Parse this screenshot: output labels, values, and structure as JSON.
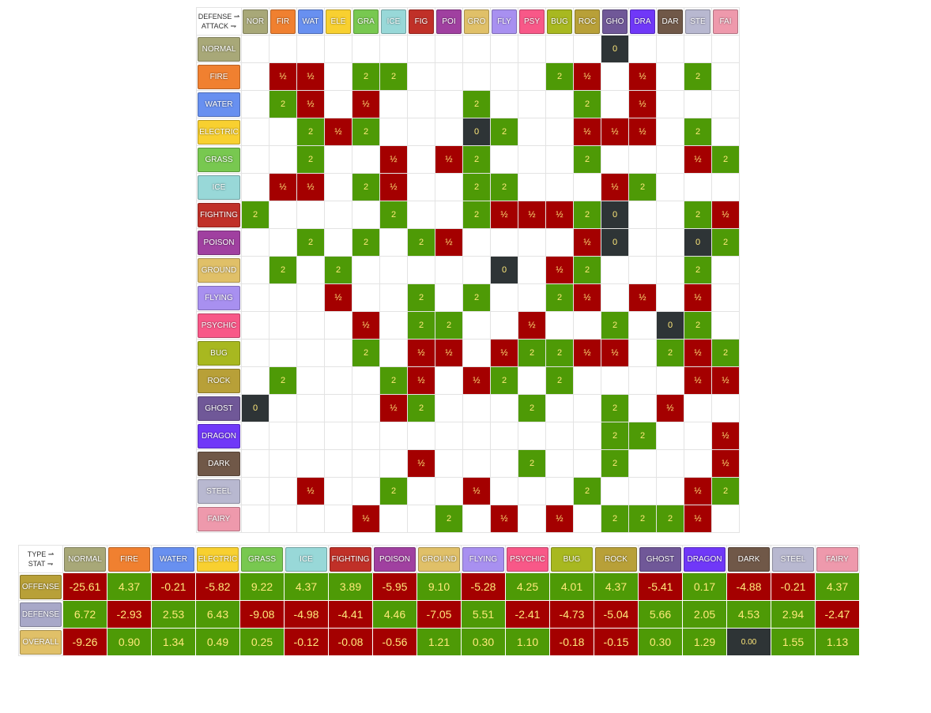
{
  "type_chart": {
    "corner_defense": "DEFENSE ⇀",
    "corner_attack": "ATTACK ⇁",
    "columns": [
      {
        "abbr": "NOR",
        "color": "#a8a878"
      },
      {
        "abbr": "FIR",
        "color": "#f08030"
      },
      {
        "abbr": "WAT",
        "color": "#6890f0"
      },
      {
        "abbr": "ELE",
        "color": "#f8d030"
      },
      {
        "abbr": "GRA",
        "color": "#78c850"
      },
      {
        "abbr": "ICE",
        "color": "#98d8d8"
      },
      {
        "abbr": "FIG",
        "color": "#c03028"
      },
      {
        "abbr": "POI",
        "color": "#a040a0"
      },
      {
        "abbr": "GRO",
        "color": "#e0c068"
      },
      {
        "abbr": "FLY",
        "color": "#a890f0"
      },
      {
        "abbr": "PSY",
        "color": "#f85888"
      },
      {
        "abbr": "BUG",
        "color": "#a8b820"
      },
      {
        "abbr": "ROC",
        "color": "#b8a038"
      },
      {
        "abbr": "GHO",
        "color": "#705898"
      },
      {
        "abbr": "DRA",
        "color": "#7038f8"
      },
      {
        "abbr": "DAR",
        "color": "#705848"
      },
      {
        "abbr": "STE",
        "color": "#b8b8d0"
      },
      {
        "abbr": "FAI",
        "color": "#ee99ac"
      }
    ],
    "rows": [
      {
        "name": "NORMAL",
        "color": "#a8a878",
        "cells": [
          "",
          "",
          "",
          "",
          "",
          "",
          "",
          "",
          "",
          "",
          "",
          "",
          "",
          "0",
          "",
          "",
          "",
          ""
        ]
      },
      {
        "name": "FIRE",
        "color": "#f08030",
        "cells": [
          "",
          "½",
          "½",
          "",
          "2",
          "2",
          "",
          "",
          "",
          "",
          "",
          "2",
          "½",
          "",
          "½",
          "",
          "2",
          ""
        ]
      },
      {
        "name": "WATER",
        "color": "#6890f0",
        "cells": [
          "",
          "2",
          "½",
          "",
          "½",
          "",
          "",
          "",
          "2",
          "",
          "",
          "",
          "2",
          "",
          "½",
          "",
          "",
          ""
        ]
      },
      {
        "name": "ELECTRIC",
        "color": "#f8d030",
        "cells": [
          "",
          "",
          "2",
          "½",
          "2",
          "",
          "",
          "",
          "0",
          "2",
          "",
          "",
          "½",
          "½",
          "½",
          "",
          "2",
          ""
        ]
      },
      {
        "name": "GRASS",
        "color": "#78c850",
        "cells": [
          "",
          "",
          "2",
          "",
          "",
          "½",
          "",
          "½",
          "2",
          "",
          "",
          "",
          "2",
          "",
          "",
          "",
          "½",
          "2"
        ]
      },
      {
        "name": "ICE",
        "color": "#98d8d8",
        "cells": [
          "",
          "½",
          "½",
          "",
          "2",
          "½",
          "",
          "",
          "2",
          "2",
          "",
          "",
          "",
          "½",
          "2",
          "",
          "",
          ""
        ]
      },
      {
        "name": "FIGHTING",
        "color": "#c03028",
        "cells": [
          "2",
          "",
          "",
          "",
          "",
          "2",
          "",
          "",
          "2",
          "½",
          "½",
          "½",
          "2",
          "0",
          "",
          "",
          "2",
          "½"
        ]
      },
      {
        "name": "POISON",
        "color": "#a040a0",
        "cells": [
          "",
          "",
          "2",
          "",
          "2",
          "",
          "2",
          "½",
          "",
          "",
          "",
          "",
          "½",
          "0",
          "",
          "",
          "0",
          "2"
        ]
      },
      {
        "name": "GROUND",
        "color": "#e0c068",
        "cells": [
          "",
          "2",
          "",
          "2",
          "",
          "",
          "",
          "",
          "",
          "0",
          "",
          "½",
          "2",
          "",
          "",
          "",
          "2",
          ""
        ]
      },
      {
        "name": "FLYING",
        "color": "#a890f0",
        "cells": [
          "",
          "",
          "",
          "½",
          "",
          "",
          "2",
          "",
          "2",
          "",
          "",
          "2",
          "½",
          "",
          "½",
          "",
          "½",
          ""
        ]
      },
      {
        "name": "PSYCHIC",
        "color": "#f85888",
        "cells": [
          "",
          "",
          "",
          "",
          "½",
          "",
          "2",
          "2",
          "",
          "",
          "½",
          "",
          "",
          "2",
          "",
          "0",
          "2",
          ""
        ]
      },
      {
        "name": "BUG",
        "color": "#a8b820",
        "cells": [
          "",
          "",
          "",
          "",
          "2",
          "",
          "½",
          "½",
          "",
          "½",
          "2",
          "2",
          "½",
          "½",
          "",
          "2",
          "½",
          "2"
        ]
      },
      {
        "name": "ROCK",
        "color": "#b8a038",
        "cells": [
          "",
          "2",
          "",
          "",
          "",
          "2",
          "½",
          "",
          "½",
          "2",
          "",
          "2",
          "",
          "",
          "",
          "",
          "½",
          "½"
        ]
      },
      {
        "name": "GHOST",
        "color": "#705898",
        "cells": [
          "0",
          "",
          "",
          "",
          "",
          "½",
          "2",
          "",
          "",
          "",
          "2",
          "",
          "",
          "2",
          "",
          "½",
          "",
          ""
        ]
      },
      {
        "name": "DRAGON",
        "color": "#7038f8",
        "cells": [
          "",
          "",
          "",
          "",
          "",
          "",
          "",
          "",
          "",
          "",
          "",
          "",
          "",
          "2",
          "2",
          "",
          "",
          "½"
        ]
      },
      {
        "name": "DARK",
        "color": "#705848",
        "cells": [
          "",
          "",
          "",
          "",
          "",
          "",
          "½",
          "",
          "",
          "",
          "2",
          "",
          "",
          "2",
          "",
          "",
          "",
          "½"
        ]
      },
      {
        "name": "STEEL",
        "color": "#b8b8d0",
        "cells": [
          "",
          "",
          "½",
          "",
          "",
          "2",
          "",
          "",
          "½",
          "",
          "",
          "",
          "2",
          "",
          "",
          "",
          "½",
          "2"
        ]
      },
      {
        "name": "FAIRY",
        "color": "#ee99ac",
        "cells": [
          "",
          "",
          "",
          "",
          "½",
          "",
          "",
          "2",
          "",
          "½",
          "",
          "½",
          "",
          "2",
          "2",
          "2",
          "½",
          ""
        ]
      }
    ]
  },
  "stat_table": {
    "corner_type": "TYPE ⇀",
    "corner_stat": "STAT ⇁",
    "columns": [
      {
        "name": "NORMAL",
        "color": "#a8a878"
      },
      {
        "name": "FIRE",
        "color": "#f08030"
      },
      {
        "name": "WATER",
        "color": "#6890f0"
      },
      {
        "name": "ELECTRIC",
        "color": "#f8d030"
      },
      {
        "name": "GRASS",
        "color": "#78c850"
      },
      {
        "name": "ICE",
        "color": "#98d8d8"
      },
      {
        "name": "FIGHTING",
        "color": "#c03028"
      },
      {
        "name": "POISON",
        "color": "#a040a0"
      },
      {
        "name": "GROUND",
        "color": "#e0c068"
      },
      {
        "name": "FLYING",
        "color": "#a890f0"
      },
      {
        "name": "PSYCHIC",
        "color": "#f85888"
      },
      {
        "name": "BUG",
        "color": "#a8b820"
      },
      {
        "name": "ROCK",
        "color": "#b8a038"
      },
      {
        "name": "GHOST",
        "color": "#705898"
      },
      {
        "name": "DRAGON",
        "color": "#7038f8"
      },
      {
        "name": "DARK",
        "color": "#705848"
      },
      {
        "name": "STEEL",
        "color": "#b8b8d0"
      },
      {
        "name": "FAIRY",
        "color": "#ee99ac"
      }
    ],
    "rows": [
      {
        "name": "OFFENSE",
        "values": [
          "-25.61",
          "4.37",
          "-0.21",
          "-5.82",
          "9.22",
          "4.37",
          "3.89",
          "-5.95",
          "9.10",
          "-5.28",
          "4.25",
          "4.01",
          "4.37",
          "-5.41",
          "0.17",
          "-4.88",
          "-0.21",
          "4.37"
        ]
      },
      {
        "name": "DEFENSE",
        "values": [
          "6.72",
          "-2.93",
          "2.53",
          "6.43",
          "-9.08",
          "-4.98",
          "-4.41",
          "4.46",
          "-7.05",
          "5.51",
          "-2.41",
          "-4.73",
          "-5.04",
          "5.66",
          "2.05",
          "4.53",
          "2.94",
          "-2.47"
        ]
      },
      {
        "name": "OVERALL",
        "values": [
          "-9.26",
          "0.90",
          "1.34",
          "0.49",
          "0.25",
          "-0.12",
          "-0.08",
          "-0.56",
          "1.21",
          "0.30",
          "1.10",
          "-0.18",
          "-0.15",
          "0.30",
          "1.29",
          "0.00",
          "1.55",
          "1.13"
        ]
      }
    ],
    "row_colors": {
      "OFFENSE": "#b8a038",
      "DEFENSE": "#a8a8c8",
      "OVERALL": "#e0c068"
    }
  }
}
